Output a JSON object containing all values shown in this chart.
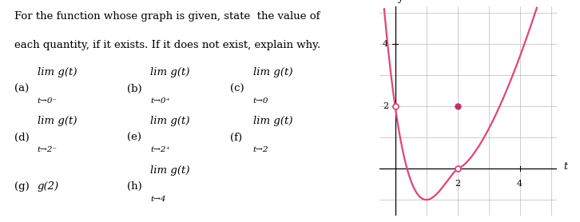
{
  "description_line1": "For the function whose graph is given, state  the value of",
  "description_line2": "each quantity, if it exists. If it does not exist, explain why.",
  "items": [
    {
      "label": "(a)",
      "lim_text": "lim g(t)",
      "sub": "t→0⁻"
    },
    {
      "label": "(b)",
      "lim_text": "lim g(t)",
      "sub": "t→0⁺"
    },
    {
      "label": "(c)",
      "lim_text": "lim g(t)",
      "sub": "t→0"
    },
    {
      "label": "(d)",
      "lim_text": "lim g(t)",
      "sub": "t→2⁻"
    },
    {
      "label": "(e)",
      "lim_text": "lim g(t)",
      "sub": "t→2⁺"
    },
    {
      "label": "(f)",
      "lim_text": "lim g(t)",
      "sub": "t→2"
    },
    {
      "label": "(g)",
      "lim_text": "g(2)",
      "sub": ""
    },
    {
      "label": "(h)",
      "lim_text": "lim g(t)",
      "sub": "t→4"
    }
  ],
  "graph": {
    "xlim_min": -0.5,
    "xlim_max": 5.2,
    "ylim_min": -1.5,
    "ylim_max": 5.2,
    "xtick_vals": [
      2,
      4
    ],
    "ytick_vals": [
      2,
      4
    ],
    "xlabel": "t",
    "ylabel": "y",
    "curve_color": "#e0457b",
    "dot_fill_color": "#c0306a",
    "open_circle_color": "#e0457b",
    "grid_color": "#bbbbbb",
    "axis_color": "#000000",
    "curve_linewidth": 1.6,
    "bg_color": "#ffffff"
  }
}
